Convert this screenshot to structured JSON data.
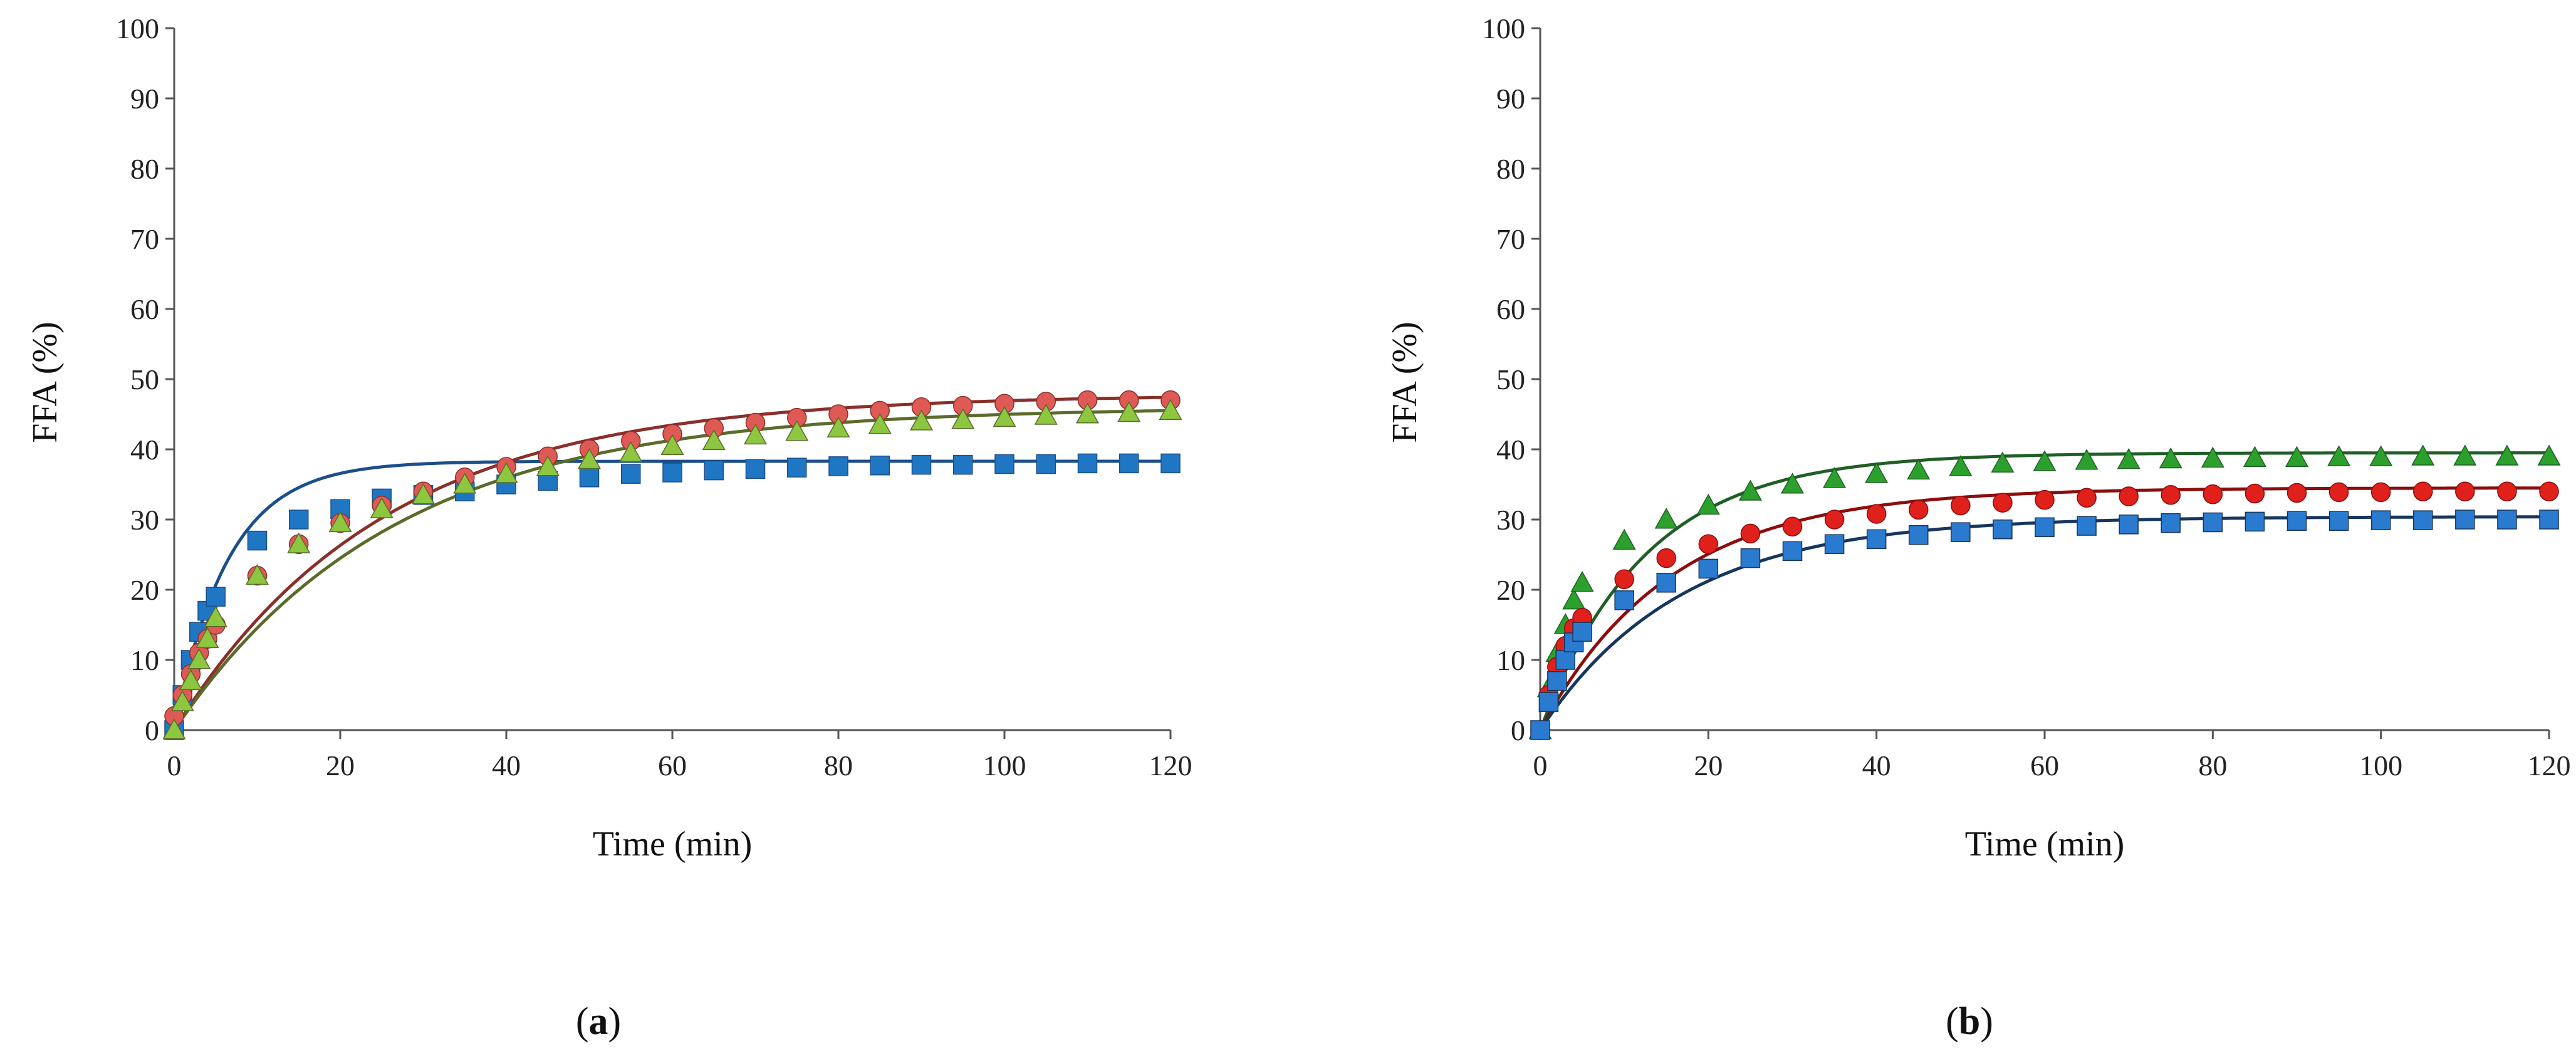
{
  "chart_data": [
    {
      "panel": "a",
      "type": "scatter",
      "xlabel": "Time (min)",
      "ylabel": "FFA (%)",
      "xlim": [
        0,
        120
      ],
      "ylim": [
        0,
        100
      ],
      "xticks": [
        0,
        20,
        40,
        60,
        80,
        100,
        120
      ],
      "yticks": [
        0,
        10,
        20,
        30,
        40,
        50,
        60,
        70,
        80,
        90,
        100
      ],
      "grid": false,
      "series": [
        {
          "name": "square",
          "marker": "square",
          "color": "#1f77c4",
          "line_color": "#1b4f8a",
          "x": [
            0,
            1,
            2,
            3,
            4,
            5,
            10,
            15,
            20,
            25,
            30,
            35,
            40,
            45,
            50,
            55,
            60,
            65,
            70,
            75,
            80,
            85,
            90,
            95,
            100,
            105,
            110,
            115,
            120
          ],
          "y": [
            0,
            5,
            10,
            14,
            17,
            19,
            27,
            30,
            31.5,
            33,
            33.5,
            34,
            35,
            35.5,
            36,
            36.5,
            36.7,
            37,
            37.2,
            37.4,
            37.6,
            37.7,
            37.8,
            37.8,
            37.9,
            37.9,
            38,
            38,
            38
          ],
          "fit_asymptote": 38.3,
          "fit_k": 0.155
        },
        {
          "name": "circle",
          "marker": "circle",
          "color": "#e05a55",
          "line_color": "#8b2f2a",
          "x": [
            0,
            1,
            2,
            3,
            4,
            5,
            10,
            15,
            20,
            25,
            30,
            35,
            40,
            45,
            50,
            55,
            60,
            65,
            70,
            75,
            80,
            85,
            90,
            95,
            100,
            105,
            110,
            115,
            120
          ],
          "y": [
            2,
            5,
            8,
            11,
            13,
            15,
            22,
            26.5,
            29.5,
            32,
            34,
            36,
            37.5,
            39,
            40,
            41.2,
            42.2,
            43,
            43.8,
            44.5,
            45,
            45.5,
            46,
            46.2,
            46.5,
            46.8,
            47,
            47,
            47
          ],
          "fit_asymptote": 47.8,
          "fit_k": 0.04
        },
        {
          "name": "triangle",
          "marker": "triangle",
          "color": "#8dc63f",
          "line_color": "#5a6b2a",
          "x": [
            0,
            1,
            2,
            3,
            4,
            5,
            10,
            15,
            20,
            25,
            30,
            35,
            40,
            45,
            50,
            55,
            60,
            65,
            70,
            75,
            80,
            85,
            90,
            95,
            100,
            105,
            110,
            115,
            120
          ],
          "y": [
            0,
            4,
            7,
            10,
            13,
            16,
            22,
            26.5,
            29.5,
            31.5,
            33.5,
            35,
            36.5,
            37.5,
            38.5,
            39.5,
            40.5,
            41.2,
            42,
            42.5,
            43,
            43.5,
            44,
            44.2,
            44.5,
            44.8,
            45,
            45.2,
            45.5
          ],
          "fit_asymptote": 46,
          "fit_k": 0.038
        }
      ]
    },
    {
      "panel": "b",
      "type": "scatter",
      "xlabel": "Time (min)",
      "ylabel": "FFA (%)",
      "xlim": [
        0,
        120
      ],
      "ylim": [
        0,
        100
      ],
      "xticks": [
        0,
        20,
        40,
        60,
        80,
        100,
        120
      ],
      "yticks": [
        0,
        10,
        20,
        30,
        40,
        50,
        60,
        70,
        80,
        90,
        100
      ],
      "grid": false,
      "series": [
        {
          "name": "triangle",
          "marker": "triangle",
          "color": "#2ca02c",
          "line_color": "#1f5f25",
          "x": [
            0,
            1,
            2,
            3,
            4,
            5,
            10,
            15,
            20,
            25,
            30,
            35,
            40,
            45,
            50,
            55,
            60,
            65,
            70,
            75,
            80,
            85,
            90,
            95,
            100,
            105,
            110,
            115,
            120
          ],
          "y": [
            0,
            6,
            11,
            15,
            18.5,
            21,
            27,
            30,
            32,
            34,
            35,
            35.8,
            36.5,
            37,
            37.5,
            38,
            38.2,
            38.4,
            38.5,
            38.6,
            38.7,
            38.8,
            38.8,
            38.9,
            38.9,
            39,
            39,
            39,
            39
          ],
          "fit_asymptote": 39.5,
          "fit_k": 0.08
        },
        {
          "name": "circle",
          "marker": "circle",
          "color": "#e0201b",
          "line_color": "#8b0d0d",
          "x": [
            0,
            1,
            2,
            3,
            4,
            5,
            10,
            15,
            20,
            25,
            30,
            35,
            40,
            45,
            50,
            55,
            60,
            65,
            70,
            75,
            80,
            85,
            90,
            95,
            100,
            105,
            110,
            115,
            120
          ],
          "y": [
            0,
            5,
            9,
            12,
            14.5,
            16,
            21.5,
            24.5,
            26.5,
            28,
            29,
            30,
            30.8,
            31.4,
            32,
            32.4,
            32.8,
            33.1,
            33.3,
            33.5,
            33.6,
            33.7,
            33.8,
            33.9,
            33.9,
            34,
            34,
            34,
            34
          ],
          "fit_asymptote": 34.5,
          "fit_k": 0.065
        },
        {
          "name": "square",
          "marker": "square",
          "color": "#2a7bd0",
          "line_color": "#16365e",
          "x": [
            0,
            1,
            2,
            3,
            4,
            5,
            10,
            15,
            20,
            25,
            30,
            35,
            40,
            45,
            50,
            55,
            60,
            65,
            70,
            75,
            80,
            85,
            90,
            95,
            100,
            105,
            110,
            115,
            120
          ],
          "y": [
            0,
            4,
            7,
            10,
            12.5,
            14,
            18.5,
            21,
            23,
            24.5,
            25.5,
            26.5,
            27.2,
            27.8,
            28.2,
            28.6,
            28.9,
            29.1,
            29.3,
            29.5,
            29.6,
            29.7,
            29.8,
            29.8,
            29.9,
            29.9,
            30,
            30,
            30
          ],
          "fit_asymptote": 30.4,
          "fit_k": 0.06
        }
      ]
    }
  ],
  "panel_labels": [
    {
      "open": "(",
      "letter": "a",
      "close": ")"
    },
    {
      "open": "(",
      "letter": "b",
      "close": ")"
    }
  ]
}
